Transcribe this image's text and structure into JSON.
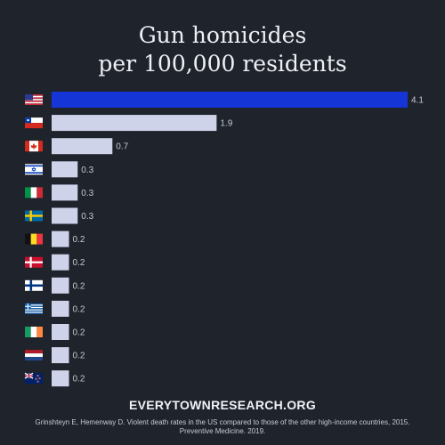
{
  "title_line1": "Gun homicides",
  "title_line2": "per 100,000 residents",
  "chart_data": {
    "type": "bar",
    "orientation": "horizontal",
    "categories": [
      "united-states-flag",
      "chile-flag",
      "canada-flag",
      "israel-flag",
      "italy-flag",
      "sweden-flag",
      "belgium-flag",
      "denmark-flag",
      "finland-flag",
      "greece-flag",
      "ireland-flag",
      "netherlands-flag",
      "new-zealand-flag"
    ],
    "values": [
      4.1,
      1.9,
      0.7,
      0.3,
      0.3,
      0.3,
      0.2,
      0.2,
      0.2,
      0.2,
      0.2,
      0.2,
      0.2
    ],
    "value_labels": [
      "4.1",
      "1.9",
      "0.7",
      "0.3",
      "0.3",
      "0.3",
      "0.2",
      "0.2",
      "0.2",
      "0.2",
      "0.2",
      "0.2",
      "0.2"
    ],
    "xlim": [
      0,
      4.1
    ],
    "grid": false,
    "colors": {
      "highlight": "#1535d6",
      "default": "#cfd3ea",
      "label": "#c4c8d2"
    }
  },
  "footer": {
    "site": "EVERYTOWNRESEARCH.ORG",
    "source_line1": "Grinshteyn E, Hemenway D. Violent death rates in the US compared to those of the other high-income countries, 2015.",
    "source_line2": "Preventive Medicine. 2019."
  }
}
